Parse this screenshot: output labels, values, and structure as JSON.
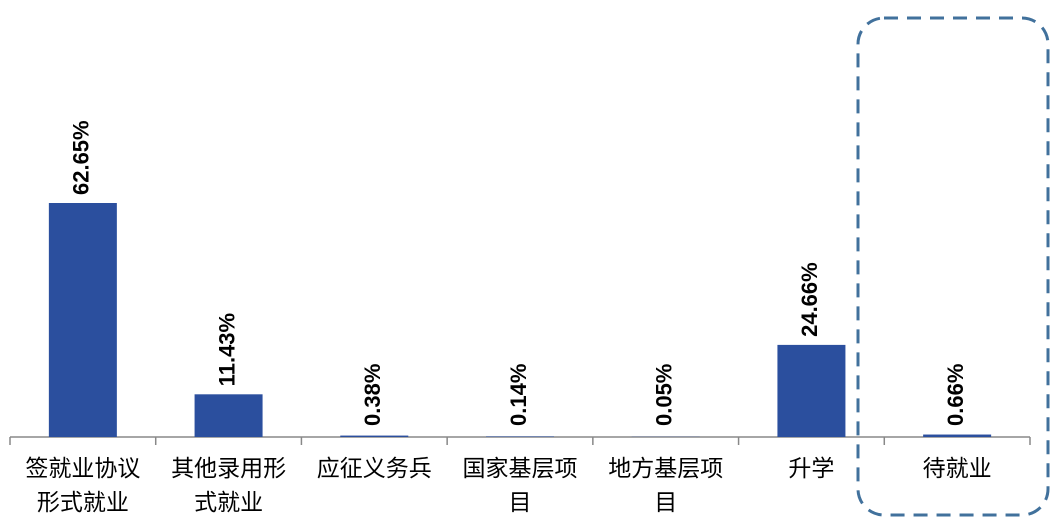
{
  "chart_data": {
    "type": "bar",
    "categories": [
      "签就业协议形式就业",
      "其他录用形式就业",
      "应征义务兵",
      "国家基层项目",
      "地方基层项目",
      "升学",
      "待就业"
    ],
    "values": [
      62.65,
      11.43,
      0.38,
      0.14,
      0.05,
      24.66,
      0.66
    ],
    "value_labels": [
      "62.65%",
      "11.43%",
      "0.38%",
      "0.14%",
      "0.05%",
      "24.66%",
      "0.66%"
    ],
    "color": "#2b4f9e"
  }
}
